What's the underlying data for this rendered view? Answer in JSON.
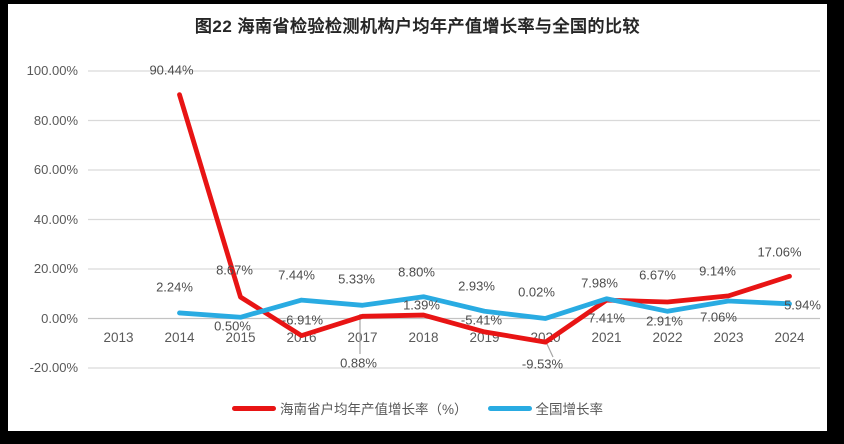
{
  "title": "图22  海南省检验检测机构户均年产值增长率与全国的比较",
  "colors": {
    "hainan_red": "#e81414",
    "national_blue": "#29abe2",
    "gridline": "#d9d9d9",
    "axis_line": "#c3c3c3",
    "leader_line": "#a6a6a6",
    "tick_text": "#595959",
    "label_text": "#4d4d4d",
    "title_text": "#262626",
    "frame": "#000000",
    "background": "#ffffff"
  },
  "chart_data": {
    "type": "line",
    "title": "图22  海南省检验检测机构户均年产值增长率与全国的比较",
    "categories": [
      "2013",
      "2014",
      "2015",
      "2016",
      "2017",
      "2018",
      "2019",
      "2020",
      "2021",
      "2022",
      "2023",
      "2024"
    ],
    "series": [
      {
        "name": "海南省户均年产值增长率（%）",
        "color": "#e81414",
        "values": [
          null,
          90.44,
          8.67,
          -6.91,
          0.88,
          1.39,
          -5.41,
          -9.53,
          7.41,
          6.67,
          9.14,
          17.06
        ],
        "labels": [
          null,
          "90.44%",
          "8.67%",
          "-6.91%",
          "0.88%",
          "1.39%",
          "-5.41%",
          "-9.53%",
          "7.41%",
          "6.67%",
          "9.14%",
          "17.06%"
        ]
      },
      {
        "name": "全国增长率",
        "color": "#29abe2",
        "values": [
          null,
          2.24,
          0.5,
          7.44,
          5.33,
          8.8,
          2.93,
          0.02,
          7.98,
          2.91,
          7.06,
          5.94
        ],
        "labels": [
          null,
          "2.24%",
          "0.50%",
          "7.44%",
          "5.33%",
          "8.80%",
          "2.93%",
          "0.02%",
          "7.98%",
          "2.91%",
          "7.06%",
          "5.94%"
        ]
      }
    ],
    "xlabel": "",
    "ylabel": "",
    "ylim": [
      -20,
      100
    ],
    "y_tick_labels": [
      "100.00%",
      "80.00%",
      "60.00%",
      "40.00%",
      "20.00%",
      "0.00%",
      "-20.00%"
    ],
    "y_tick_values": [
      100,
      80,
      60,
      40,
      20,
      0,
      -20
    ],
    "grid": true,
    "markers": false,
    "legend_position": "bottom"
  }
}
